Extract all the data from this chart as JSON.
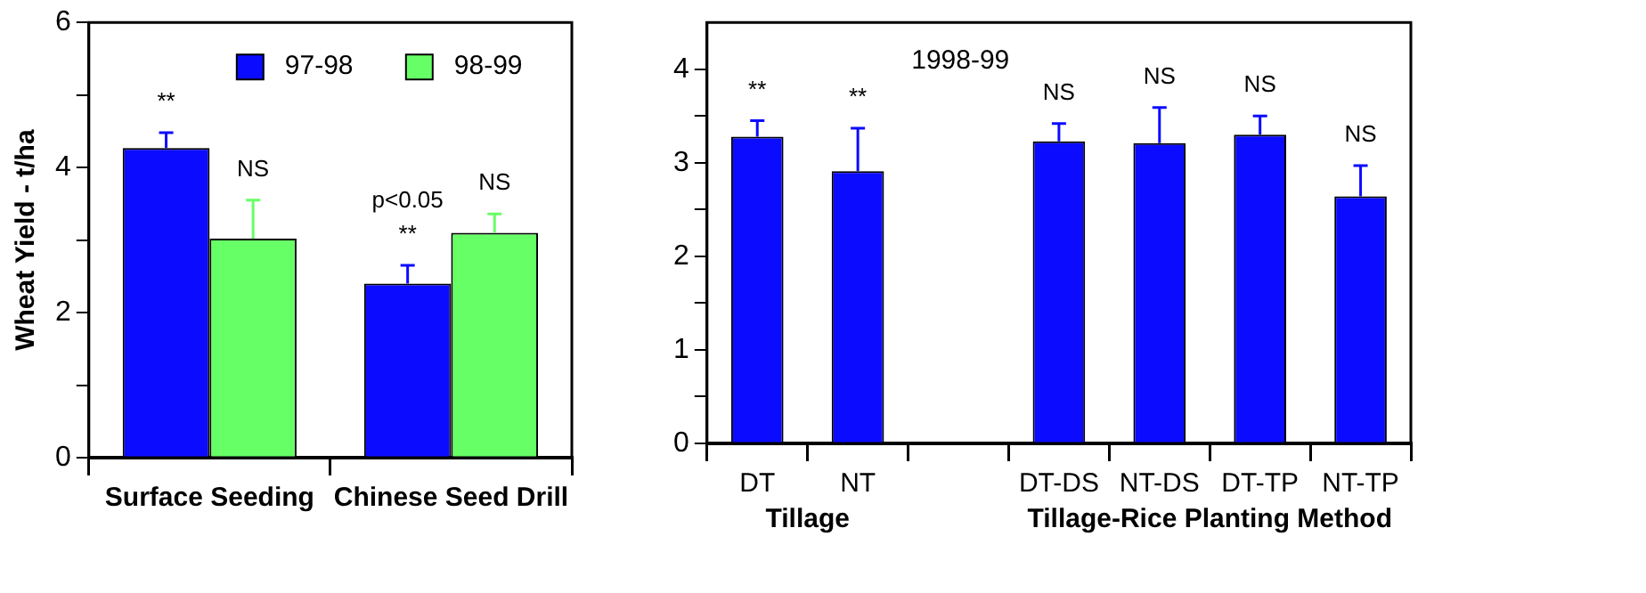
{
  "chart_data": [
    {
      "type": "bar",
      "categories": [
        "Surface Seeding",
        "Chinese Seed Drill"
      ],
      "ylabel": "Wheat Yield - t/ha",
      "series": [
        {
          "name": "97-98",
          "color": "#0b0bff",
          "values": [
            4.27,
            2.4
          ],
          "errors": [
            [
              4.27,
              4.48
            ],
            [
              2.4,
              2.65
            ]
          ]
        },
        {
          "name": "98-99",
          "color": "#66ff66",
          "values": [
            3.02,
            3.1
          ],
          "errors": [
            [
              3.02,
              3.55
            ],
            [
              3.1,
              3.36
            ]
          ]
        }
      ],
      "ylim": [
        0,
        6
      ],
      "yticks": [
        0,
        {
          "value": 1,
          "label": null
        },
        2,
        {
          "value": 3,
          "label": null
        },
        4,
        {
          "value": 5,
          "label": null
        },
        6
      ],
      "legend": "top",
      "grid": false,
      "annotations": [
        "**",
        "NS",
        "p<0.05\n**",
        "NS"
      ]
    },
    {
      "type": "bar",
      "title": "1998-99",
      "categories": [
        "DT",
        "NT",
        null,
        "DT-DS",
        "NT-DS",
        "DT-TP",
        "NT-TP"
      ],
      "series": [
        {
          "color": "#0b0bff",
          "values": [
            3.28,
            2.91,
            null,
            3.23,
            3.21,
            3.3,
            2.64
          ],
          "errors": [
            [
              3.28,
              3.45
            ],
            [
              2.91,
              3.37
            ],
            null,
            [
              3.23,
              3.42
            ],
            [
              3.21,
              3.59
            ],
            [
              3.3,
              3.5
            ],
            [
              2.64,
              2.97
            ]
          ]
        }
      ],
      "ylim": [
        0,
        4.5
      ],
      "yticks": [
        0,
        {
          "value": 0.5,
          "label": null
        },
        1,
        {
          "value": 1.5,
          "label": null
        },
        2,
        {
          "value": 2.5,
          "label": null
        },
        3,
        {
          "value": 3.5,
          "label": null
        },
        4
      ],
      "grid": false,
      "annotations": [
        "Tillage",
        "Tillage-Rice Planting Method",
        "**",
        "**",
        "NS",
        "NS",
        "NS",
        "NS"
      ]
    }
  ]
}
